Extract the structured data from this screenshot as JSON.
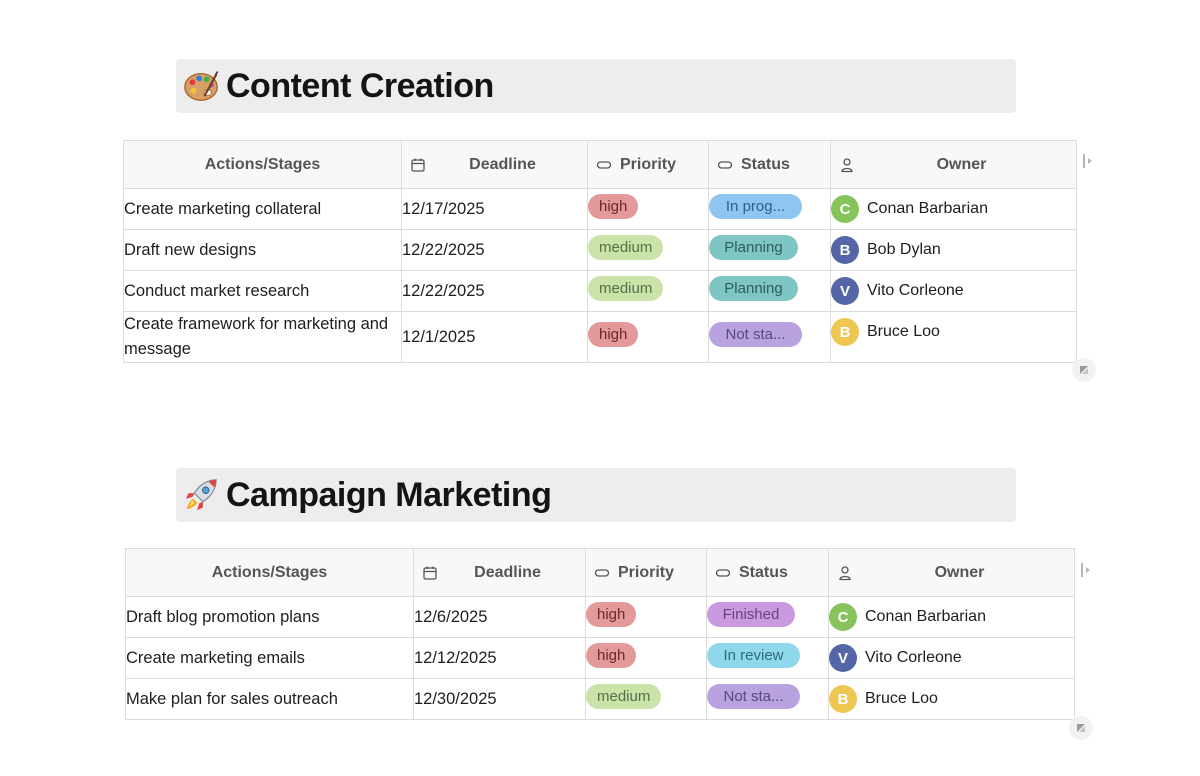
{
  "colors": {
    "high": "#e49a9a",
    "high_text": "#6b2a2a",
    "medium": "#c9e3a8",
    "medium_text": "#56704a",
    "in_progress": "#8ec6f1",
    "in_progress_text": "#2f5f88",
    "planning": "#7ec6c1",
    "planning_text": "#2d5e5a",
    "not_started": "#b9a2e0",
    "not_started_text": "#5a4780",
    "finished": "#c99ae0",
    "finished_text": "#6a3f84",
    "in_review": "#8fd7ea",
    "in_review_text": "#2d6a7a",
    "avatar_green": "#86c35a",
    "avatar_blue": "#5566a8",
    "avatar_yellow": "#eec652"
  },
  "columns": {
    "actions": "Actions/Stages",
    "deadline": "Deadline",
    "priority": "Priority",
    "status": "Status",
    "owner": "Owner"
  },
  "sections": [
    {
      "title": "Content Creation",
      "emoji": "artist-palette-icon",
      "rows": [
        {
          "action": "Create marketing collateral",
          "deadline": "12/17/2025",
          "priority": "high",
          "status": "In prog...",
          "owner_initial": "C",
          "owner": "Conan Barbarian"
        },
        {
          "action": "Draft new designs",
          "deadline": "12/22/2025",
          "priority": "medium",
          "status": "Planning",
          "owner_initial": "B",
          "owner": "Bob Dylan"
        },
        {
          "action": "Conduct market research",
          "deadline": "12/22/2025",
          "priority": "medium",
          "status": "Planning",
          "owner_initial": "V",
          "owner": "Vito Corleone"
        },
        {
          "action": "Create framework for marketing and message",
          "deadline": "12/1/2025",
          "priority": "high",
          "status": "Not sta...",
          "owner_initial": "B",
          "owner": "Bruce Loo"
        }
      ]
    },
    {
      "title": "Campaign Marketing",
      "emoji": "rocket-icon",
      "rows": [
        {
          "action": "Draft blog promotion plans",
          "deadline": "12/6/2025",
          "priority": "high",
          "status": "Finished",
          "owner_initial": "C",
          "owner": "Conan Barbarian"
        },
        {
          "action": "Create marketing emails",
          "deadline": "12/12/2025",
          "priority": "high",
          "status": "In review",
          "owner_initial": "V",
          "owner": "Vito Corleone"
        },
        {
          "action": "Make plan for sales outreach",
          "deadline": "12/30/2025",
          "priority": "medium",
          "status": "Not sta...",
          "owner_initial": "B",
          "owner": "Bruce Loo"
        }
      ]
    }
  ]
}
